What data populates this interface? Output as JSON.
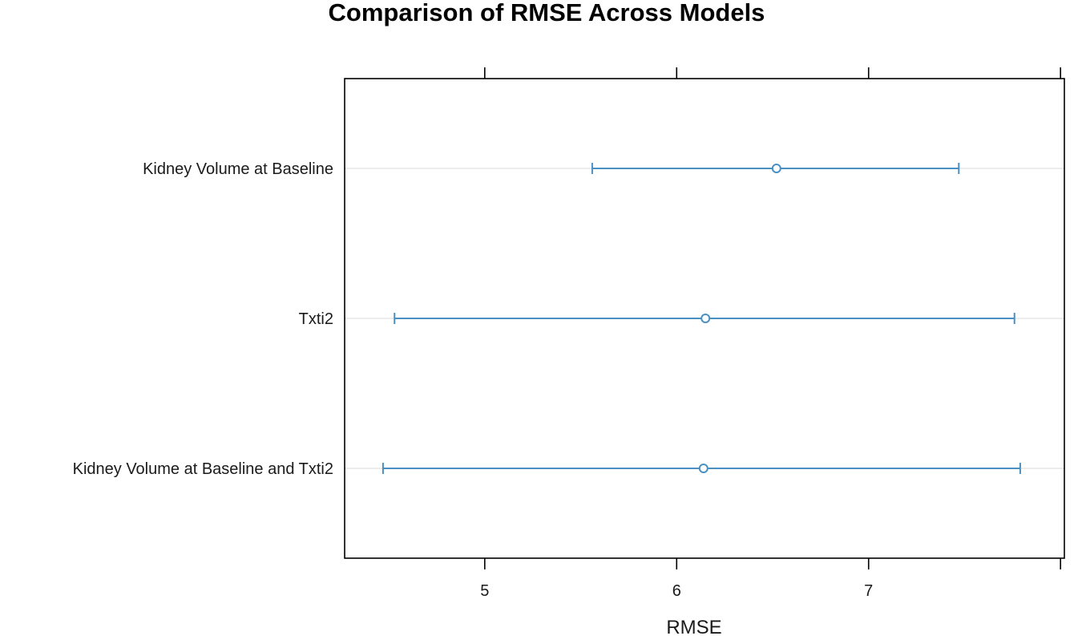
{
  "chart_data": {
    "type": "dotplot-errorbar",
    "title": "Comparison of RMSE Across Models",
    "xlabel": "RMSE",
    "ylabel": "",
    "xlim": [
      4.27,
      8.02
    ],
    "x_ticks": [
      5,
      6,
      7,
      8
    ],
    "x_tick_labels": [
      "5",
      "6",
      "7",
      ""
    ],
    "grid": true,
    "legend": "none",
    "colors": {
      "series": "#4a90c2",
      "guide": "#e6e6e6",
      "frame": "#000000"
    },
    "categories": [
      "Kidney Volume at Baseline",
      "Txti2",
      "Kidney Volume at Baseline and Txti2"
    ],
    "values": [
      6.52,
      6.15,
      6.14
    ],
    "lower": [
      5.56,
      4.53,
      4.47
    ],
    "upper": [
      7.47,
      7.76,
      7.79
    ]
  }
}
